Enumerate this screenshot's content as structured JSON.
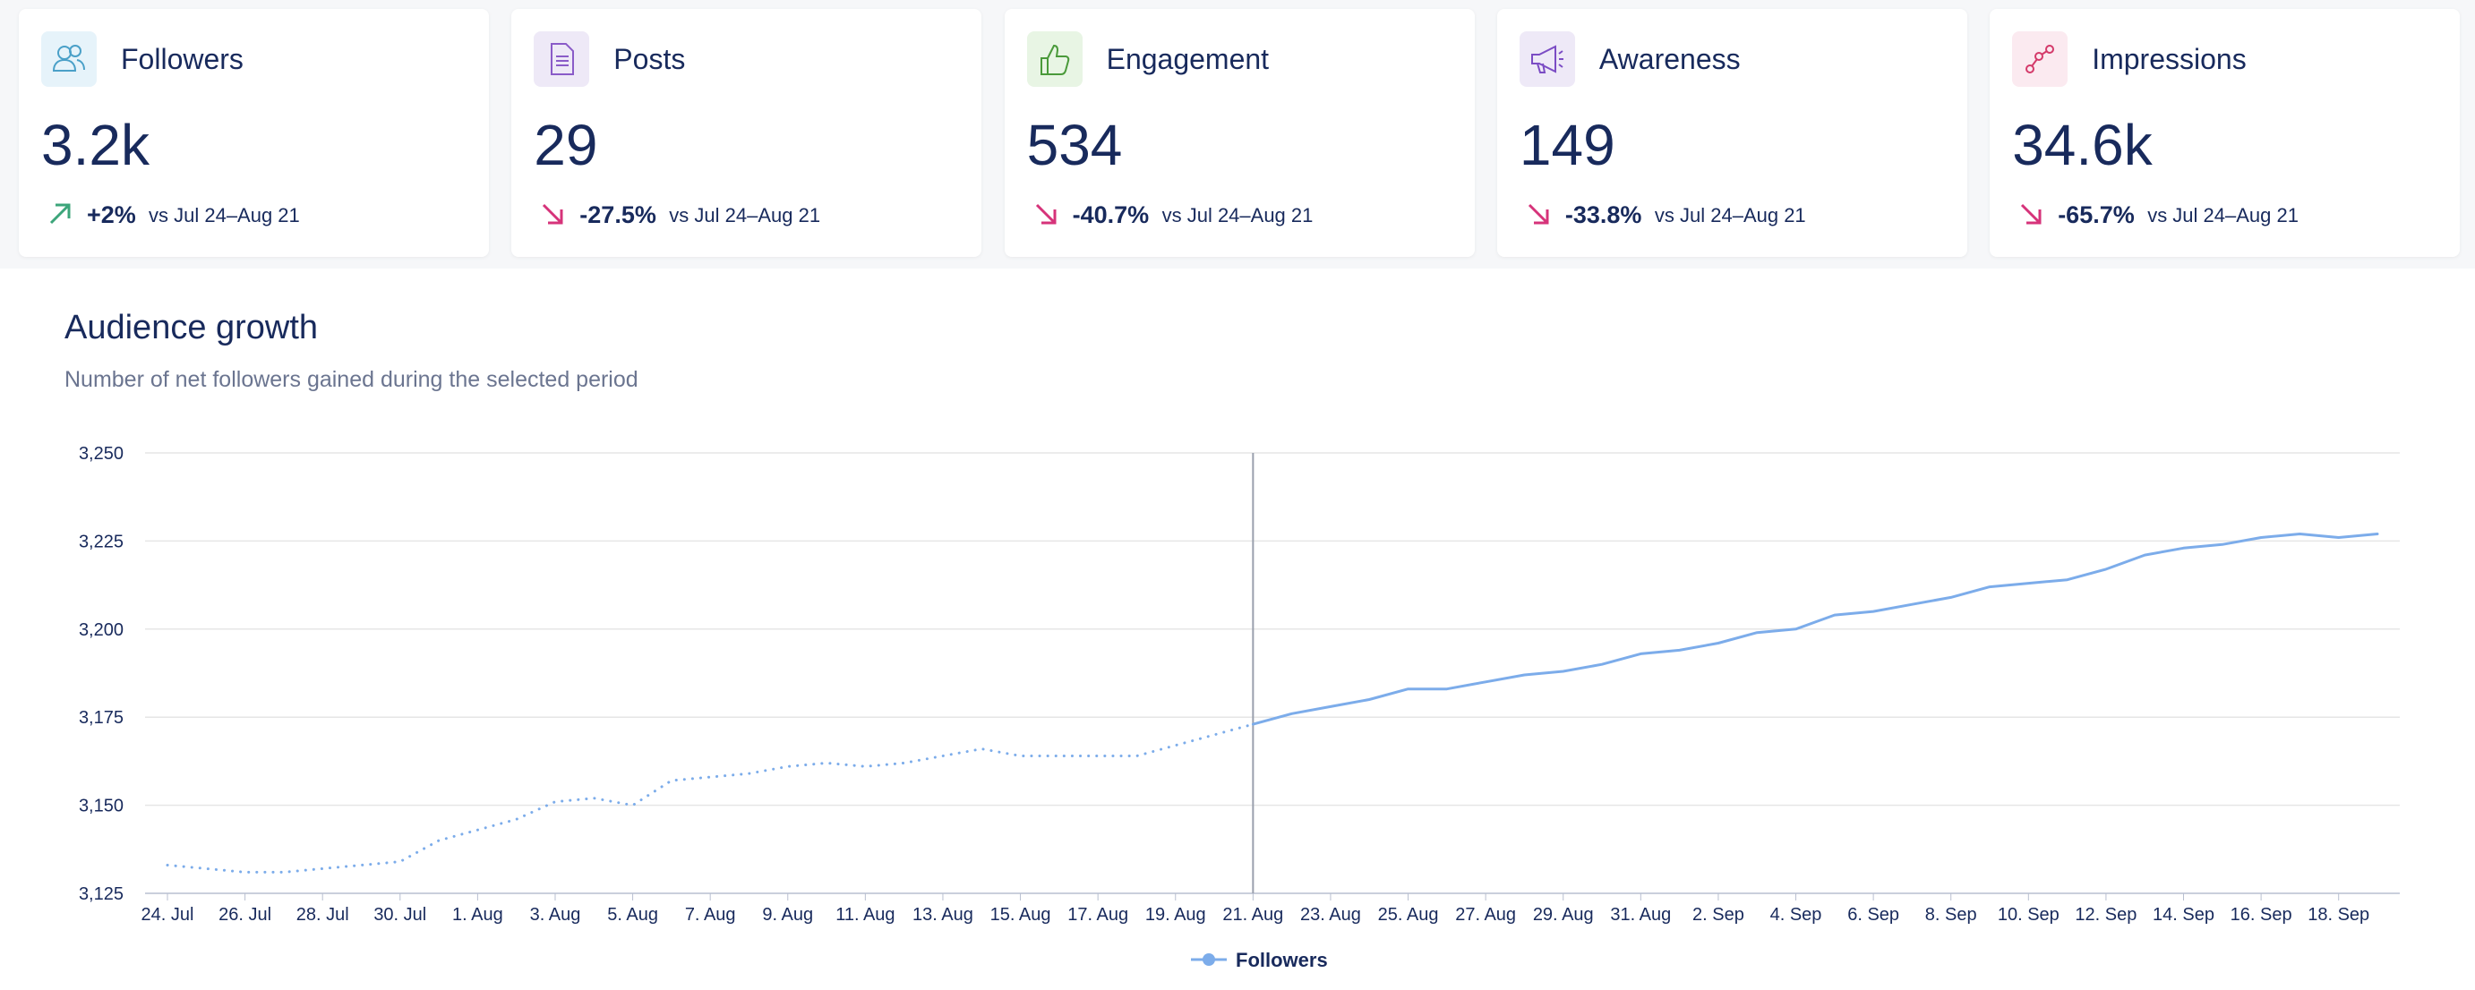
{
  "cards": [
    {
      "title": "Followers",
      "value": "3.2k",
      "change": "+2%",
      "comparison": "vs Jul 24–Aug 21"
    },
    {
      "title": "Posts",
      "value": "29",
      "change": "-27.5%",
      "comparison": "vs Jul 24–Aug 21"
    },
    {
      "title": "Engagement",
      "value": "534",
      "change": "-40.7%",
      "comparison": "vs Jul 24–Aug 21"
    },
    {
      "title": "Awareness",
      "value": "149",
      "change": "-33.8%",
      "comparison": "vs Jul 24–Aug 21"
    },
    {
      "title": "Impressions",
      "value": "34.6k",
      "change": "-65.7%",
      "comparison": "vs Jul 24–Aug 21"
    }
  ],
  "chart_data": {
    "type": "line",
    "title": "Audience growth",
    "subtitle": "Number of net followers gained during the selected period",
    "categories": [
      "24. Jul",
      null,
      "26. Jul",
      null,
      "28. Jul",
      null,
      "30. Jul",
      null,
      "1. Aug",
      null,
      "3. Aug",
      null,
      "5. Aug",
      null,
      "7. Aug",
      null,
      "9. Aug",
      null,
      "11. Aug",
      null,
      "13. Aug",
      null,
      "15. Aug",
      null,
      "17. Aug",
      null,
      "19. Aug",
      null,
      "21. Aug",
      null,
      "23. Aug",
      null,
      "25. Aug",
      null,
      "27. Aug",
      null,
      "29. Aug",
      null,
      "31. Aug",
      null,
      "2. Sep",
      null,
      "4. Sep",
      null,
      "6. Sep",
      null,
      "8. Sep",
      null,
      "10. Sep",
      null,
      "12. Sep",
      null,
      "14. Sep",
      null,
      "16. Sep",
      null,
      "18. Sep",
      null
    ],
    "series": [
      {
        "name": "Followers",
        "color": "#7cacea",
        "values": [
          3133,
          3132,
          3131,
          3131,
          3132,
          3133,
          3134,
          3140,
          3143,
          3146,
          3151,
          3152,
          3150,
          3157,
          3158,
          3159,
          3161,
          3162,
          3161,
          3162,
          3164,
          3166,
          3164,
          3164,
          3164,
          3164,
          3167,
          3170,
          3173,
          3176,
          3178,
          3180,
          3183,
          3183,
          3185,
          3187,
          3188,
          3190,
          3193,
          3194,
          3196,
          3199,
          3200,
          3204,
          3205,
          3207,
          3209,
          3212,
          3213,
          3214,
          3217,
          3221,
          3223,
          3224,
          3226,
          3227,
          3226,
          3227
        ]
      }
    ],
    "divider": 28,
    "ylim": [
      3125,
      3250
    ],
    "yticks": [
      {
        "value": 3125,
        "label": "3,125"
      },
      {
        "value": 3150,
        "label": "3,150"
      },
      {
        "value": 3175,
        "label": "3,175"
      },
      {
        "value": 3200,
        "label": "3,200"
      },
      {
        "value": 3225,
        "label": "3,225"
      },
      {
        "value": 3250,
        "label": "3,250"
      }
    ],
    "grid": true,
    "legend": "bottom"
  }
}
